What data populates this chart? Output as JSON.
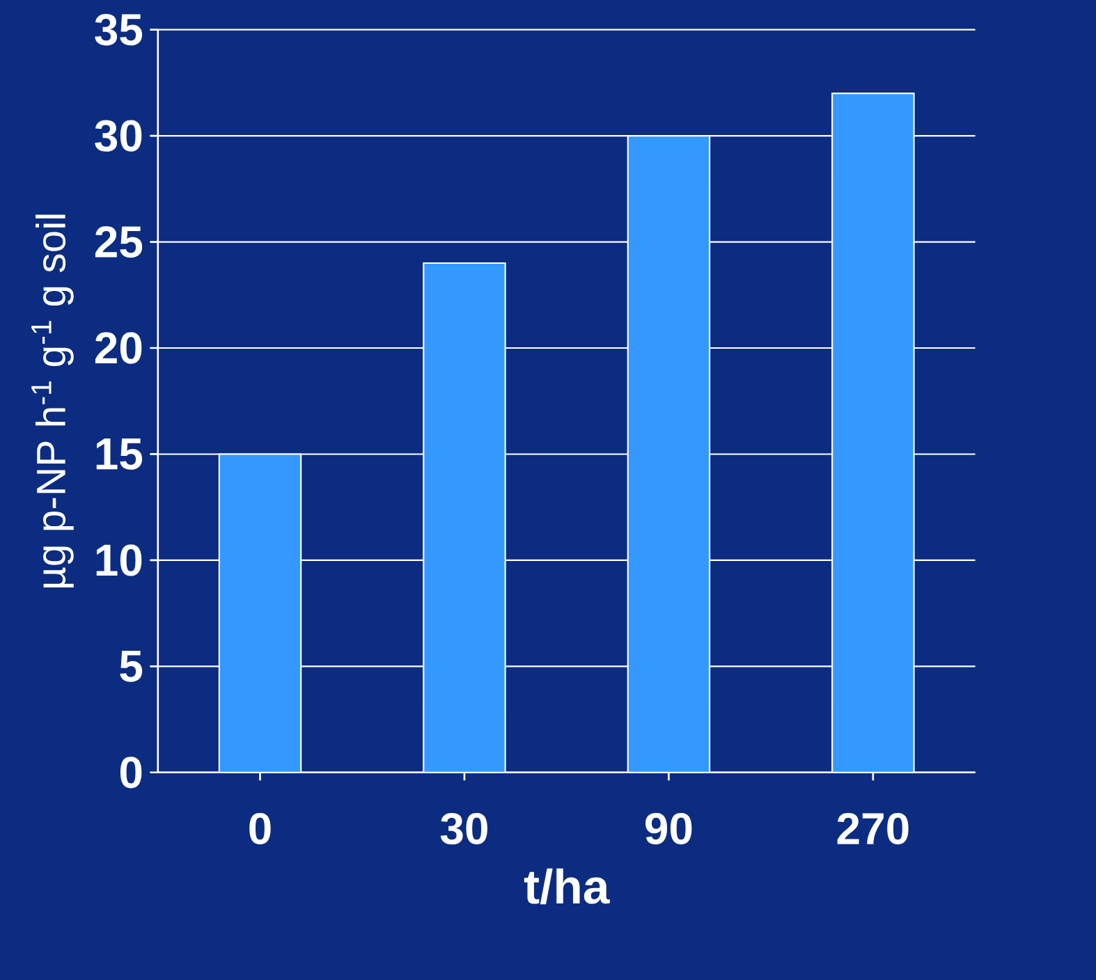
{
  "chart_data": {
    "type": "bar",
    "xlabel": "t/ha",
    "ylabel": "µg p-NP h$^{-1}$ g$^{-1}$ g soil",
    "categories": [
      "0",
      "30",
      "90",
      "270"
    ],
    "values": [
      15,
      24,
      30,
      32
    ],
    "color": "#3399ff",
    "ylim": [
      0,
      35
    ],
    "yticks": [
      0,
      5,
      10,
      15,
      20,
      25,
      30,
      35
    ],
    "grid": "y"
  }
}
